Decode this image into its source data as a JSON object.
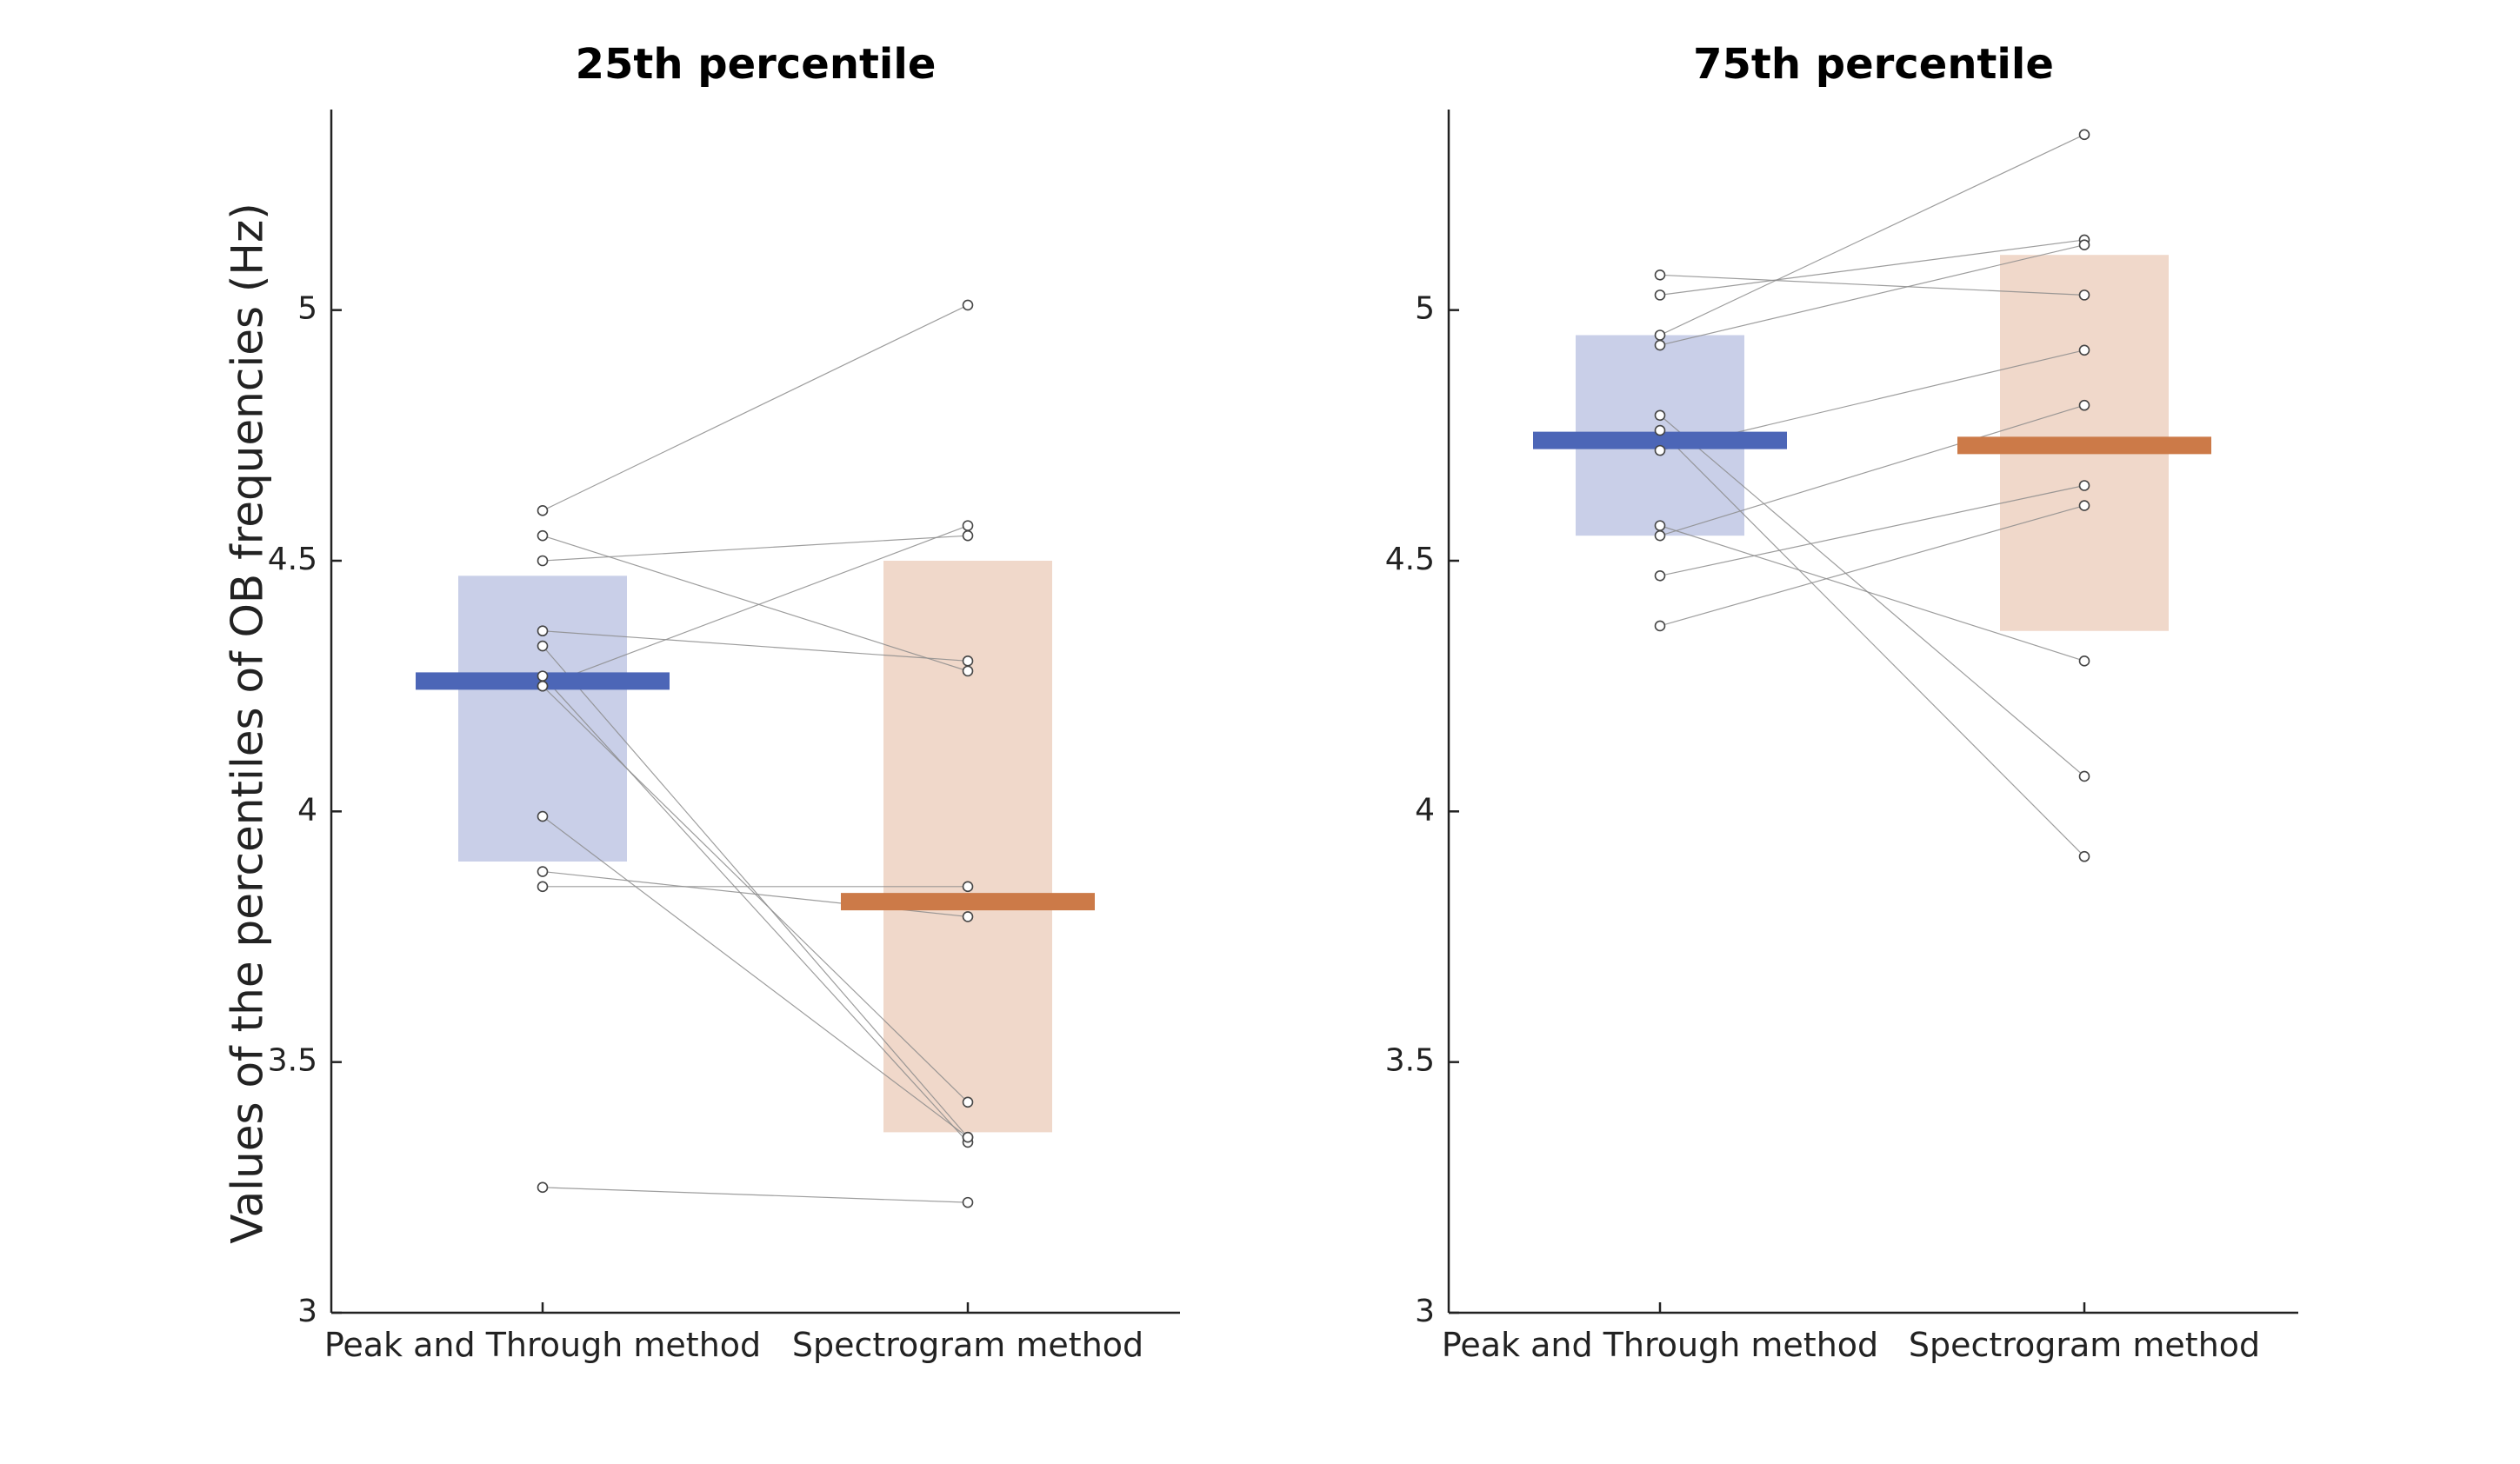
{
  "ylabel": "Values of the percentiles of OB frequencies (Hz)",
  "colors": {
    "peak_box": "#c9cfe8",
    "peak_median": "#4c66b7",
    "spec_box": "#f0d8ca",
    "spec_median": "#cc7a48",
    "points": "#ffffff",
    "lines": "#8c8c8c"
  },
  "chart_data": [
    {
      "type": "scatter",
      "title": "25th percentile",
      "categories": [
        "Peak and Through method",
        "Spectrogram method"
      ],
      "ylim": [
        3,
        5.4
      ],
      "yticks": [
        3,
        3.5,
        4,
        4.5,
        5
      ],
      "ytick_labels": [
        "3",
        "3.5",
        "4",
        "4.5",
        "5"
      ],
      "boxes": [
        {
          "category": "Peak and Through method",
          "low": 3.9,
          "high": 4.47,
          "median": 4.26
        },
        {
          "category": "Spectrogram method",
          "low": 3.36,
          "high": 4.5,
          "median": 3.82
        }
      ],
      "pairs": [
        [
          4.6,
          5.01
        ],
        [
          4.5,
          4.55
        ],
        [
          4.55,
          4.28
        ],
        [
          4.36,
          4.3
        ],
        [
          4.33,
          3.35
        ],
        [
          4.27,
          3.34
        ],
        [
          4.25,
          4.57
        ],
        [
          4.25,
          3.42
        ],
        [
          3.99,
          3.35
        ],
        [
          3.88,
          3.79
        ],
        [
          3.85,
          3.85
        ],
        [
          3.25,
          3.22
        ]
      ]
    },
    {
      "type": "scatter",
      "title": "75th percentile",
      "categories": [
        "Peak and Through method",
        "Spectrogram method"
      ],
      "ylim": [
        3,
        5.4
      ],
      "yticks": [
        3,
        3.5,
        4,
        4.5,
        5
      ],
      "ytick_labels": [
        "3",
        "3.5",
        "4",
        "4.5",
        "5"
      ],
      "boxes": [
        {
          "category": "Peak and Through method",
          "low": 4.55,
          "high": 4.95,
          "median": 4.74
        },
        {
          "category": "Spectrogram method",
          "low": 4.36,
          "high": 5.11,
          "median": 4.73
        }
      ],
      "pairs": [
        [
          5.07,
          5.03
        ],
        [
          5.03,
          5.14
        ],
        [
          4.95,
          5.35
        ],
        [
          4.93,
          5.13
        ],
        [
          4.79,
          4.07
        ],
        [
          4.76,
          3.91
        ],
        [
          4.72,
          4.92
        ],
        [
          4.57,
          4.3
        ],
        [
          4.55,
          4.81
        ],
        [
          4.47,
          4.65
        ],
        [
          4.37,
          4.61
        ]
      ]
    }
  ]
}
